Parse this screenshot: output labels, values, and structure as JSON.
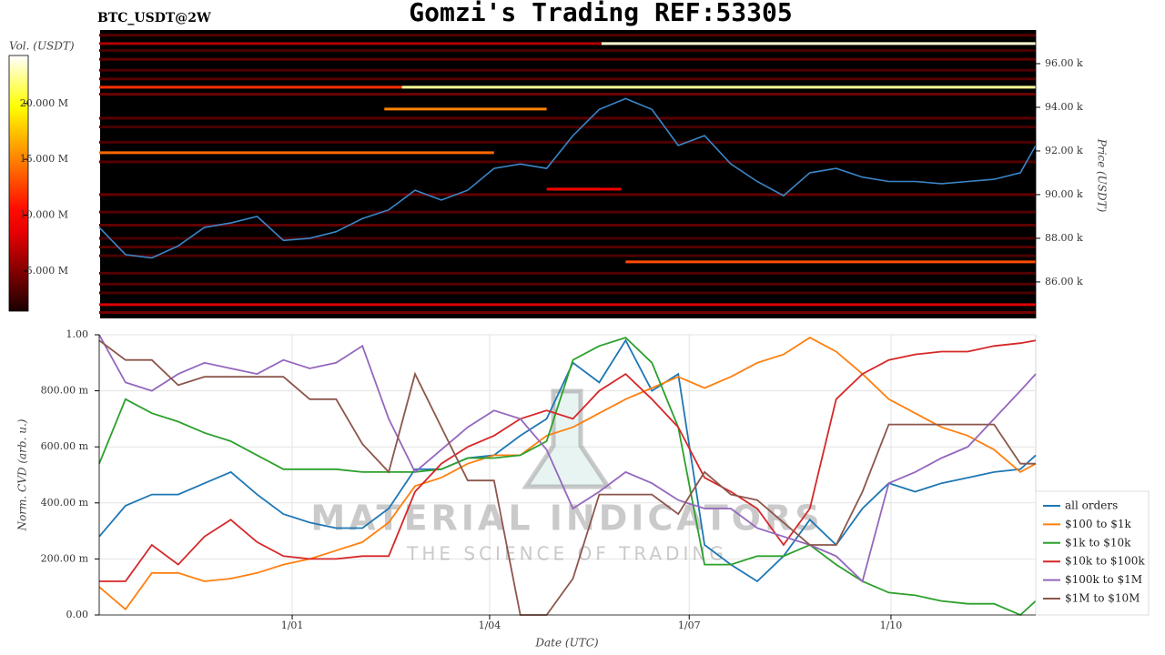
{
  "title": "Gomzi's Trading REF:53305",
  "watermark": [
    "MATERIAL INDICATORS",
    "THE SCIENCE OF TRADING"
  ],
  "chart_data": [
    {
      "type": "heatmap",
      "title": "BTC_USDT@2W",
      "ylabel": "Price (USDT)",
      "colorbar_label": "Vol. (USDT)",
      "xlim": [
        -88,
        339
      ],
      "ylim": [
        84330,
        97540
      ],
      "yticks": [
        {
          "value": 86000,
          "label": "86.00 k"
        },
        {
          "value": 88000,
          "label": "88.00 k"
        },
        {
          "value": 90000,
          "label": "90.00 k"
        },
        {
          "value": 92000,
          "label": "92.00 k"
        },
        {
          "value": 94000,
          "label": "94.00 k"
        },
        {
          "value": 96000,
          "label": "96.00 k"
        }
      ],
      "clim": [
        1400000,
        24300000
      ],
      "cticks": [
        {
          "value": 5000000,
          "label": "5.000 M"
        },
        {
          "value": 10000000,
          "label": "10.000 M"
        },
        {
          "value": 15000000,
          "label": "15.000 M"
        },
        {
          "value": 20000000,
          "label": "20.000 M"
        }
      ],
      "levels": [
        {
          "price": 97300,
          "x": [
            -88,
            339
          ],
          "volume": 3500000
        },
        {
          "price": 96920,
          "x": [
            -88,
            141
          ],
          "volume": 6500000
        },
        {
          "price": 96920,
          "x": [
            141,
            339
          ],
          "volume": 23500000
        },
        {
          "price": 96600,
          "x": [
            -88,
            339
          ],
          "volume": 3000000
        },
        {
          "price": 96200,
          "x": [
            -88,
            339
          ],
          "volume": 3800000
        },
        {
          "price": 95700,
          "x": [
            -88,
            339
          ],
          "volume": 3200000
        },
        {
          "price": 95300,
          "x": [
            -88,
            339
          ],
          "volume": 3500000
        },
        {
          "price": 94920,
          "x": [
            -88,
            50
          ],
          "volume": 12000000
        },
        {
          "price": 94920,
          "x": [
            50,
            339
          ],
          "volume": 22500000
        },
        {
          "price": 94600,
          "x": [
            -88,
            339
          ],
          "volume": 4200000
        },
        {
          "price": 93920,
          "x": [
            42,
            116
          ],
          "volume": 15000000
        },
        {
          "price": 93500,
          "x": [
            -88,
            339
          ],
          "volume": 3600000
        },
        {
          "price": 93100,
          "x": [
            -88,
            339
          ],
          "volume": 3000000
        },
        {
          "price": 92400,
          "x": [
            -88,
            339
          ],
          "volume": 3200000
        },
        {
          "price": 91920,
          "x": [
            -88,
            92
          ],
          "volume": 14000000
        },
        {
          "price": 91500,
          "x": [
            -88,
            339
          ],
          "volume": 3400000
        },
        {
          "price": 90250,
          "x": [
            119,
            140
          ],
          "volume": 17000000
        },
        {
          "price": 90250,
          "x": [
            116,
            150
          ],
          "volume": 9000000
        },
        {
          "price": 90000,
          "x": [
            -88,
            339
          ],
          "volume": 4000000
        },
        {
          "price": 89200,
          "x": [
            -88,
            339
          ],
          "volume": 3300000
        },
        {
          "price": 88600,
          "x": [
            -88,
            339
          ],
          "volume": 3800000
        },
        {
          "price": 88000,
          "x": [
            -88,
            339
          ],
          "volume": 3000000
        },
        {
          "price": 87600,
          "x": [
            -88,
            339
          ],
          "volume": 3400000
        },
        {
          "price": 87200,
          "x": [
            -88,
            339
          ],
          "volume": 3100000
        },
        {
          "price": 86920,
          "x": [
            152,
            339
          ],
          "volume": 13000000
        },
        {
          "price": 86400,
          "x": [
            -88,
            339
          ],
          "volume": 3300000
        },
        {
          "price": 85900,
          "x": [
            -88,
            339
          ],
          "volume": 3500000
        },
        {
          "price": 85500,
          "x": [
            -88,
            339
          ],
          "volume": 3000000
        },
        {
          "price": 84960,
          "x": [
            -88,
            339
          ],
          "volume": 8000000
        },
        {
          "price": 84600,
          "x": [
            -88,
            339
          ],
          "volume": 4500000
        }
      ],
      "x": [
        -88,
        -76,
        -64,
        -52,
        -40,
        -28,
        -16,
        -4,
        8,
        20,
        32,
        44,
        56,
        68,
        80,
        92,
        104,
        116,
        128,
        140,
        152,
        164,
        176,
        188,
        200,
        212,
        224,
        236,
        248,
        260,
        272,
        284,
        296,
        308,
        320,
        332,
        339
      ],
      "series": [
        {
          "color": "#3a86c8",
          "values": [
            88500,
            87250,
            87100,
            87650,
            88500,
            88700,
            89000,
            87900,
            88000,
            88300,
            88900,
            89300,
            90200,
            89750,
            90200,
            91200,
            91400,
            91200,
            92700,
            93900,
            94400,
            93900,
            92250,
            92700,
            91400,
            90600,
            89950,
            91000,
            91200,
            90800,
            90600,
            90600,
            90500,
            90600,
            90700,
            91000,
            92250
          ]
        }
      ]
    },
    {
      "type": "line",
      "xlabel": "Date (UTC)",
      "ylabel": "Norm. CVD (arb. u.)",
      "legend": "lower right",
      "grid": true,
      "xlim": [
        -88,
        339
      ],
      "ylim": [
        0,
        1
      ],
      "xticks": [
        {
          "value": 0,
          "label": "1/01"
        },
        {
          "value": 90,
          "label": "1/04"
        },
        {
          "value": 181,
          "label": "1/07"
        },
        {
          "value": 273,
          "label": "1/10"
        }
      ],
      "yticks": [
        {
          "value": 0,
          "label": "0.00"
        },
        {
          "value": 0.2,
          "label": "200.00 m"
        },
        {
          "value": 0.4,
          "label": "400.00 m"
        },
        {
          "value": 0.6,
          "label": "600.00 m"
        },
        {
          "value": 0.8,
          "label": "800.00 m"
        },
        {
          "value": 1,
          "label": "1.00"
        }
      ],
      "x": [
        -88,
        -76,
        -64,
        -52,
        -40,
        -28,
        -16,
        -4,
        8,
        20,
        32,
        44,
        56,
        68,
        80,
        92,
        104,
        116,
        128,
        140,
        152,
        164,
        176,
        188,
        200,
        212,
        224,
        236,
        248,
        260,
        272,
        284,
        296,
        308,
        320,
        332,
        339
      ],
      "series": [
        {
          "name": "all orders",
          "color": "#1f77b4",
          "values": [
            0.28,
            0.39,
            0.43,
            0.43,
            0.47,
            0.51,
            0.43,
            0.36,
            0.33,
            0.31,
            0.31,
            0.38,
            0.52,
            0.52,
            0.56,
            0.57,
            0.64,
            0.7,
            0.9,
            0.83,
            0.98,
            0.8,
            0.86,
            0.25,
            0.18,
            0.12,
            0.21,
            0.34,
            0.25,
            0.38,
            0.47,
            0.44,
            0.47,
            0.49,
            0.51,
            0.52,
            0.57
          ]
        },
        {
          "name": "$100 to $1k",
          "color": "#ff7f0e",
          "values": [
            0.1,
            0.02,
            0.15,
            0.15,
            0.12,
            0.13,
            0.15,
            0.18,
            0.2,
            0.23,
            0.26,
            0.33,
            0.46,
            0.49,
            0.54,
            0.57,
            0.57,
            0.64,
            0.67,
            0.72,
            0.77,
            0.81,
            0.85,
            0.81,
            0.85,
            0.9,
            0.93,
            0.99,
            0.94,
            0.86,
            0.77,
            0.72,
            0.67,
            0.64,
            0.59,
            0.51,
            0.54
          ]
        },
        {
          "name": "$1k to $10k",
          "color": "#2ca02c",
          "values": [
            0.54,
            0.77,
            0.72,
            0.69,
            0.65,
            0.62,
            0.57,
            0.52,
            0.52,
            0.52,
            0.51,
            0.51,
            0.51,
            0.52,
            0.56,
            0.56,
            0.57,
            0.62,
            0.91,
            0.96,
            0.99,
            0.9,
            0.67,
            0.18,
            0.18,
            0.21,
            0.21,
            0.25,
            0.18,
            0.12,
            0.08,
            0.07,
            0.05,
            0.04,
            0.04,
            0.0,
            0.05
          ]
        },
        {
          "name": "$10k to $100k",
          "color": "#d62728",
          "values": [
            0.12,
            0.12,
            0.25,
            0.18,
            0.28,
            0.34,
            0.26,
            0.21,
            0.2,
            0.2,
            0.21,
            0.21,
            0.44,
            0.54,
            0.6,
            0.64,
            0.7,
            0.73,
            0.7,
            0.8,
            0.86,
            0.77,
            0.67,
            0.49,
            0.44,
            0.38,
            0.25,
            0.38,
            0.77,
            0.86,
            0.91,
            0.93,
            0.94,
            0.94,
            0.96,
            0.97,
            0.98
          ]
        },
        {
          "name": "$100k to $1M",
          "color": "#9467bd",
          "values": [
            1.0,
            0.83,
            0.8,
            0.86,
            0.9,
            0.88,
            0.86,
            0.91,
            0.88,
            0.9,
            0.96,
            0.7,
            0.51,
            0.59,
            0.67,
            0.73,
            0.7,
            0.59,
            0.38,
            0.44,
            0.51,
            0.47,
            0.41,
            0.38,
            0.38,
            0.31,
            0.28,
            0.25,
            0.21,
            0.12,
            0.47,
            0.51,
            0.56,
            0.6,
            0.7,
            0.8,
            0.86
          ]
        },
        {
          "name": "$1M to $10M",
          "color": "#8c564b",
          "values": [
            0.98,
            0.91,
            0.91,
            0.82,
            0.85,
            0.85,
            0.85,
            0.85,
            0.77,
            0.77,
            0.61,
            0.51,
            0.86,
            0.67,
            0.48,
            0.48,
            0.0,
            0.0,
            0.13,
            0.43,
            0.43,
            0.43,
            0.36,
            0.51,
            0.43,
            0.41,
            0.33,
            0.25,
            0.25,
            0.44,
            0.68,
            0.68,
            0.68,
            0.68,
            0.68,
            0.54,
            0.54
          ]
        }
      ]
    }
  ]
}
